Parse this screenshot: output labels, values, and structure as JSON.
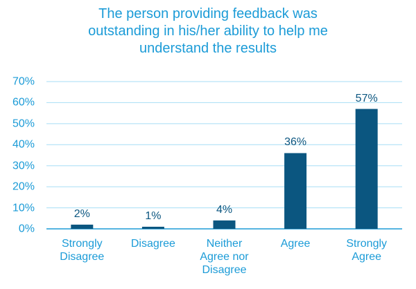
{
  "chart_data": {
    "type": "bar",
    "title": "The person providing feedback was\noutstanding in his/her ability to help me\nunderstand the results",
    "categories": [
      "Strongly\nDisagree",
      "Disagree",
      "Neither\nAgree nor\nDisagree",
      "Agree",
      "Strongly\nAgree"
    ],
    "values": [
      2,
      1,
      4,
      36,
      57
    ],
    "value_labels": [
      "2%",
      "1%",
      "4%",
      "36%",
      "57%"
    ],
    "color": "#0b5680",
    "ylim": [
      0,
      70
    ],
    "yticks": [
      {
        "value": 0,
        "label": "0%"
      },
      {
        "value": 10,
        "label": "10%"
      },
      {
        "value": 20,
        "label": "20%"
      },
      {
        "value": 30,
        "label": "30%"
      },
      {
        "value": 40,
        "label": "40%"
      },
      {
        "value": 50,
        "label": "50%"
      },
      {
        "value": 60,
        "label": "60%"
      },
      {
        "value": 70,
        "label": "70%"
      }
    ],
    "grid": true
  }
}
